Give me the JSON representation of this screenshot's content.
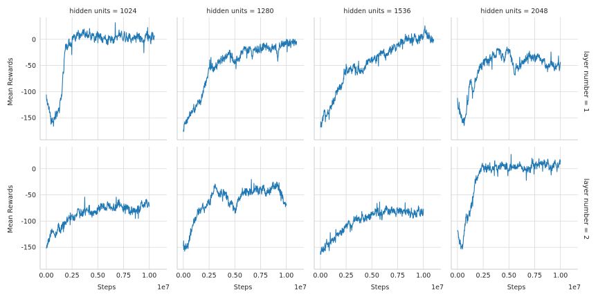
{
  "figure": {
    "row_labels": [
      "layer number = 1",
      "layer number = 2"
    ],
    "col_labels": [
      "hidden units = 1024",
      "hidden units = 1280",
      "hidden units = 1536",
      "hidden units = 2048"
    ],
    "y_label": "Mean Rewards",
    "x_label": "Steps",
    "x_offset_label": "1e7",
    "line_color": "#1f77b4",
    "grid_color": "#d9d9d9"
  },
  "chart_data": [
    {
      "type": "line",
      "title": "hidden units = 1024",
      "row": "layer number = 1",
      "xlabel": "",
      "ylabel": "Mean Rewards",
      "xlim": [
        -0.06,
        1.17
      ],
      "ylim": [
        -192,
        42
      ],
      "grid": true,
      "xticks": [
        "0.00",
        "0.25",
        "0.50",
        "0.75",
        "1.00"
      ],
      "yticks": [
        "0",
        "-50",
        "-100",
        "-150"
      ],
      "series": [
        {
          "x": [
            0,
            0.05,
            0.08,
            0.1,
            0.12,
            0.15,
            0.18,
            0.22,
            0.25,
            0.3,
            0.35,
            0.4,
            0.5,
            0.6,
            0.7,
            0.8,
            0.9,
            1.0,
            1.05
          ],
          "y": [
            -110,
            -150,
            -155,
            -140,
            -140,
            -110,
            -20,
            -5,
            -5,
            5,
            10,
            5,
            5,
            0,
            10,
            5,
            5,
            5,
            0
          ]
        }
      ]
    },
    {
      "type": "line",
      "title": "hidden units = 1280",
      "row": "layer number = 1",
      "xlabel": "",
      "ylabel": "",
      "xlim": [
        -0.06,
        1.17
      ],
      "ylim": [
        -192,
        42
      ],
      "grid": true,
      "xticks": [
        "0.00",
        "0.25",
        "0.50",
        "0.75",
        "1.00"
      ],
      "yticks": [
        "0",
        "-50",
        "-100",
        "-150"
      ],
      "series": [
        {
          "x": [
            0,
            0.05,
            0.1,
            0.15,
            0.2,
            0.25,
            0.3,
            0.35,
            0.4,
            0.45,
            0.5,
            0.6,
            0.7,
            0.8,
            0.9,
            1.0,
            1.1
          ],
          "y": [
            -170,
            -150,
            -140,
            -120,
            -95,
            -55,
            -60,
            -40,
            -35,
            -30,
            -40,
            -20,
            -25,
            -15,
            -20,
            -10,
            -5
          ]
        }
      ]
    },
    {
      "type": "line",
      "title": "hidden units = 1536",
      "row": "layer number = 1",
      "xlabel": "",
      "ylabel": "",
      "xlim": [
        -0.06,
        1.17
      ],
      "ylim": [
        -192,
        42
      ],
      "grid": true,
      "xticks": [
        "0.00",
        "0.25",
        "0.50",
        "0.75",
        "1.00"
      ],
      "yticks": [
        "0",
        "-50",
        "-100",
        "-150"
      ],
      "series": [
        {
          "x": [
            0,
            0.05,
            0.1,
            0.15,
            0.2,
            0.25,
            0.3,
            0.35,
            0.4,
            0.5,
            0.6,
            0.7,
            0.8,
            0.9,
            1.0,
            1.05,
            1.1
          ],
          "y": [
            -170,
            -140,
            -135,
            -100,
            -95,
            -60,
            -55,
            -60,
            -55,
            -40,
            -30,
            -20,
            -5,
            0,
            5,
            5,
            0
          ]
        }
      ]
    },
    {
      "type": "line",
      "title": "hidden units = 2048",
      "row": "layer number = 1",
      "xlabel": "",
      "ylabel": "",
      "xlim": [
        -0.06,
        1.17
      ],
      "ylim": [
        -192,
        42
      ],
      "grid": true,
      "xticks": [
        "0.00",
        "0.25",
        "0.50",
        "0.75",
        "1.00"
      ],
      "yticks": [
        "0",
        "-50",
        "-100",
        "-150"
      ],
      "series": [
        {
          "x": [
            0,
            0.05,
            0.08,
            0.1,
            0.12,
            0.15,
            0.2,
            0.25,
            0.3,
            0.35,
            0.4,
            0.45,
            0.5,
            0.55,
            0.6,
            0.65,
            0.7,
            0.8,
            0.9,
            0.95,
            1.0
          ],
          "y": [
            -120,
            -165,
            -150,
            -120,
            -80,
            -100,
            -60,
            -40,
            -45,
            -30,
            -20,
            -40,
            -15,
            -60,
            -55,
            -45,
            -30,
            -40,
            -50,
            -50,
            -55
          ]
        }
      ]
    },
    {
      "type": "line",
      "title": "",
      "row": "layer number = 2",
      "xlabel": "Steps",
      "ylabel": "Mean Rewards",
      "xlim": [
        -0.06,
        1.17
      ],
      "ylim": [
        -192,
        42
      ],
      "grid": true,
      "xticks": [
        "0.00",
        "0.25",
        "0.50",
        "0.75",
        "1.00"
      ],
      "yticks": [
        "0",
        "-50",
        "-100",
        "-150"
      ],
      "series": [
        {
          "x": [
            0,
            0.05,
            0.1,
            0.15,
            0.2,
            0.25,
            0.3,
            0.35,
            0.4,
            0.5,
            0.6,
            0.7,
            0.8,
            0.9,
            1.0
          ],
          "y": [
            -155,
            -120,
            -125,
            -110,
            -100,
            -90,
            -85,
            -82,
            -80,
            -78,
            -75,
            -72,
            -75,
            -75,
            -72
          ]
        }
      ]
    },
    {
      "type": "line",
      "title": "",
      "row": "layer number = 2",
      "xlabel": "Steps",
      "ylabel": "",
      "xlim": [
        -0.06,
        1.17
      ],
      "ylim": [
        -192,
        42
      ],
      "grid": true,
      "xticks": [
        "0.00",
        "0.25",
        "0.50",
        "0.75",
        "1.00"
      ],
      "yticks": [
        "0",
        "-50",
        "-100",
        "-150"
      ],
      "series": [
        {
          "x": [
            0,
            0.05,
            0.1,
            0.15,
            0.2,
            0.25,
            0.3,
            0.35,
            0.4,
            0.45,
            0.5,
            0.55,
            0.6,
            0.65,
            0.7,
            0.8,
            0.9,
            0.95,
            1.0
          ],
          "y": [
            -155,
            -140,
            -100,
            -80,
            -75,
            -65,
            -40,
            -45,
            -50,
            -60,
            -80,
            -55,
            -45,
            -50,
            -40,
            -45,
            -30,
            -45,
            -70
          ]
        }
      ]
    },
    {
      "type": "line",
      "title": "",
      "row": "layer number = 2",
      "xlabel": "Steps",
      "ylabel": "",
      "xlim": [
        -0.06,
        1.17
      ],
      "ylim": [
        -192,
        42
      ],
      "grid": true,
      "xticks": [
        "0.00",
        "0.25",
        "0.50",
        "0.75",
        "1.00"
      ],
      "yticks": [
        "0",
        "-50",
        "-100",
        "-150"
      ],
      "series": [
        {
          "x": [
            0,
            0.05,
            0.1,
            0.15,
            0.2,
            0.25,
            0.3,
            0.35,
            0.4,
            0.5,
            0.6,
            0.7,
            0.8,
            0.9,
            1.0
          ],
          "y": [
            -165,
            -150,
            -140,
            -130,
            -120,
            -110,
            -105,
            -100,
            -95,
            -88,
            -85,
            -82,
            -80,
            -82,
            -80
          ]
        }
      ]
    },
    {
      "type": "line",
      "title": "",
      "row": "layer number = 2",
      "xlabel": "Steps",
      "ylabel": "",
      "xlim": [
        -0.06,
        1.17
      ],
      "ylim": [
        -192,
        42
      ],
      "grid": true,
      "xticks": [
        "0.00",
        "0.25",
        "0.50",
        "0.75",
        "1.00"
      ],
      "yticks": [
        "0",
        "-50",
        "-100",
        "-150"
      ],
      "series": [
        {
          "x": [
            0,
            0.05,
            0.08,
            0.1,
            0.12,
            0.15,
            0.18,
            0.22,
            0.25,
            0.3,
            0.4,
            0.5,
            0.6,
            0.7,
            0.8,
            0.9,
            1.0
          ],
          "y": [
            -125,
            -150,
            -100,
            -95,
            -90,
            -60,
            -20,
            -5,
            0,
            0,
            5,
            0,
            5,
            5,
            8,
            5,
            5
          ]
        }
      ]
    }
  ]
}
